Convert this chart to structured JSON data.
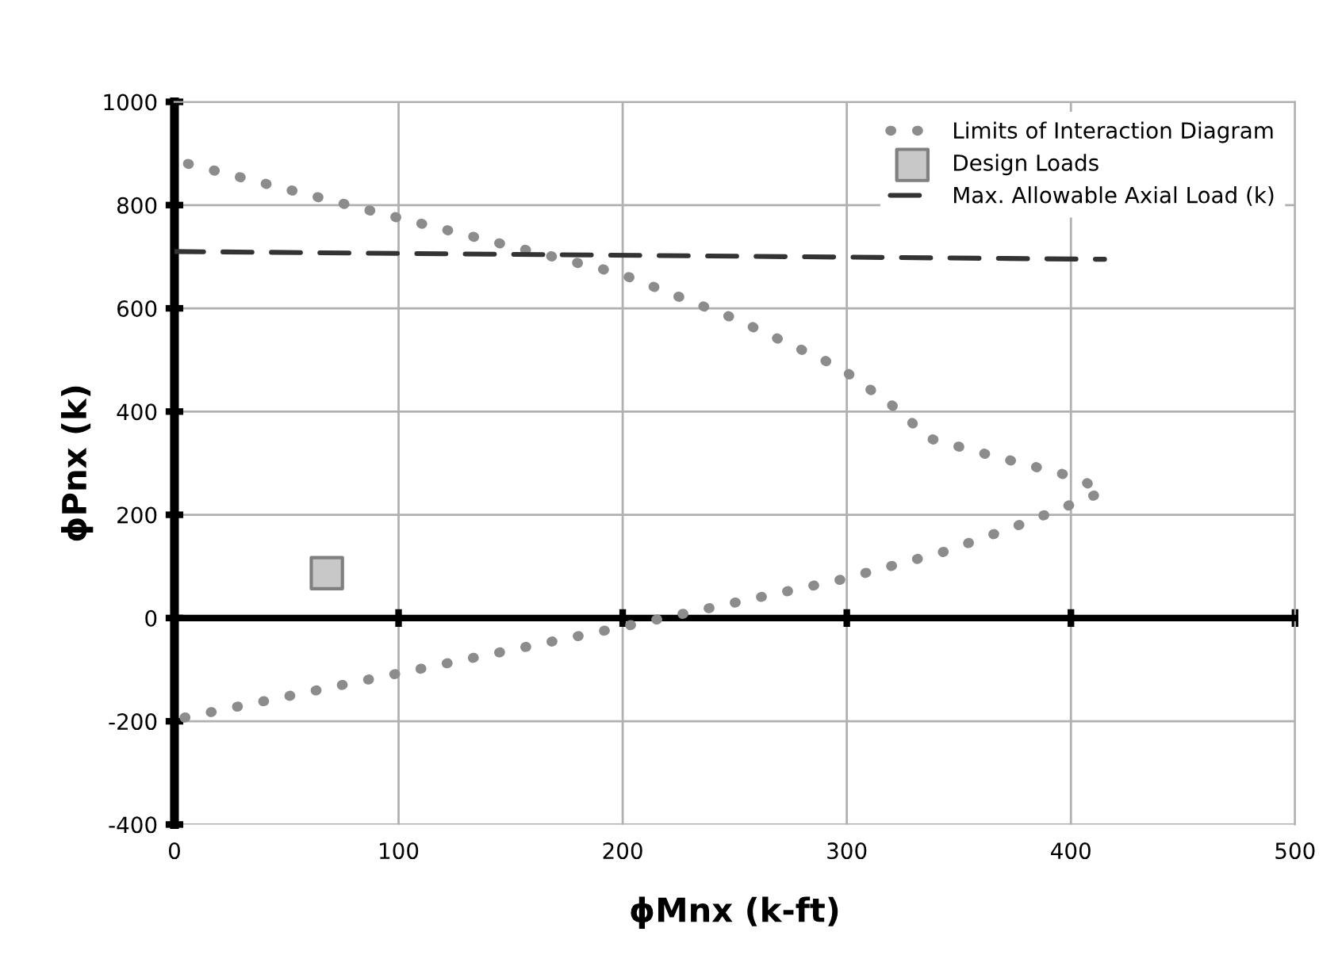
{
  "chart_data": {
    "type": "line",
    "xlabel": "ϕMnx (k-ft)",
    "ylabel": "ϕPnx (k)",
    "series": [
      {
        "name": "Limits of Interaction Diagram",
        "line_style": "dotted",
        "color": "#8c8c8c",
        "x": [
          6,
          102,
          199,
          250,
          297,
          324,
          336,
          360,
          399,
          407,
          414,
          406,
          399,
          375,
          343,
          297,
          231,
          199,
          99,
          1
        ],
        "values": [
          880,
          773,
          667,
          580,
          485,
          400,
          349,
          320,
          276,
          262,
          243,
          231,
          218,
          177,
          128,
          74,
          12,
          -18,
          -108,
          -196
        ]
      },
      {
        "name": "Design Loads",
        "type": "scatter",
        "marker": "square",
        "color": "#c8c8c8",
        "x": [
          68
        ],
        "values": [
          87
        ]
      },
      {
        "name": "Max. Allowable Axial Load (k)",
        "line_style": "dashed",
        "color": "#333333",
        "x": [
          0,
          415
        ],
        "values": [
          710,
          695
        ]
      }
    ],
    "xlim": [
      0,
      500
    ],
    "ylim": [
      -400,
      1000
    ],
    "xticks": [
      0,
      100,
      200,
      300,
      400,
      500
    ],
    "yticks": [
      -400,
      -200,
      0,
      200,
      400,
      600,
      800,
      1000
    ],
    "grid": true,
    "legend": "top right"
  }
}
